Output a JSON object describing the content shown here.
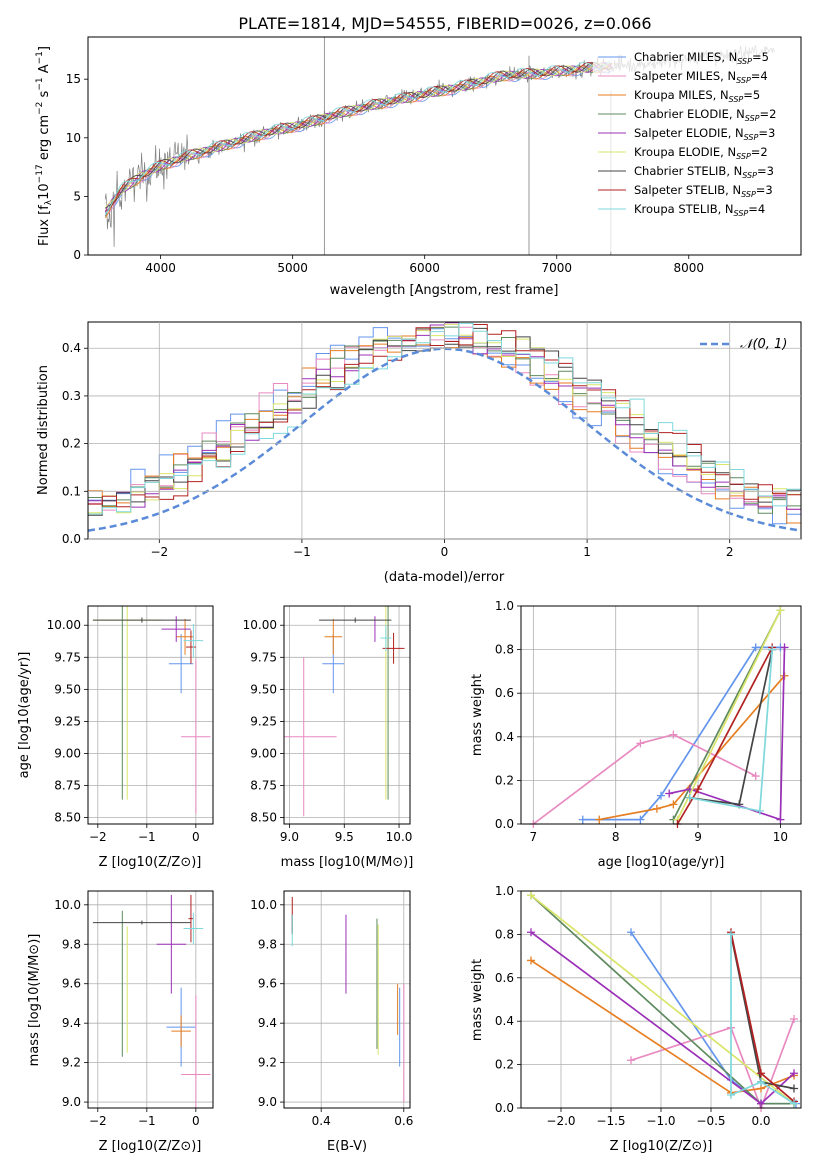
{
  "figure_title": "PLATE=1814, MJD=54555, FIBERID=0026, z=0.066",
  "model_colors": [
    "#6495ed",
    "#e889c0",
    "#e67e22",
    "#5f8a5f",
    "#9b30b8",
    "#d9e56a",
    "#444444",
    "#b22222",
    "#7fd8dc"
  ],
  "chart_data": [
    {
      "id": "spectrum",
      "type": "line",
      "title": "PLATE=1814, MJD=54555, FIBERID=0026, z=0.066",
      "xlabel": "wavelength [Angstrom, rest frame]",
      "ylabel": "Flux [fλ10⁻¹⁷ erg cm⁻² s⁻¹ A⁻¹]",
      "xlim": [
        3450,
        8850
      ],
      "ylim": [
        0,
        18.6
      ],
      "xticks": [
        4000,
        5000,
        6000,
        7000,
        8000
      ],
      "yticks": [
        0,
        5,
        10,
        15
      ],
      "grid": false,
      "legend_position": "top-right",
      "data_color": "#808080",
      "data_profile": {
        "x": [
          3580,
          3700,
          3850,
          4000,
          4200,
          4500,
          4800,
          5100,
          5400,
          5700,
          6000,
          6300,
          6600,
          6900,
          7200,
          7500,
          7800,
          8100,
          8400,
          8650
        ],
        "y": [
          3.6,
          5.5,
          6.7,
          7.6,
          8.4,
          9.4,
          10.4,
          11.2,
          12.2,
          13.0,
          13.7,
          14.4,
          15.3,
          15.5,
          15.9,
          16.2,
          16.4,
          16.8,
          17.2,
          17.5
        ]
      },
      "series": [
        {
          "name": "Chabrier MILES, N_SSP=5"
        },
        {
          "name": "Salpeter MILES, N_SSP=4"
        },
        {
          "name": "Kroupa MILES, N_SSP=5"
        },
        {
          "name": "Chabrier ELODIE, N_SSP=2"
        },
        {
          "name": "Salpeter ELODIE, N_SSP=3"
        },
        {
          "name": "Kroupa ELODIE, N_SSP=2"
        },
        {
          "name": "Chabrier STELIB, N_SSP=3"
        },
        {
          "name": "Salpeter STELIB, N_SSP=3"
        },
        {
          "name": "Kroupa STELIB, N_SSP=4"
        }
      ]
    },
    {
      "id": "residuals",
      "type": "line",
      "xlabel": "(data-model)/error",
      "ylabel": "Normed distribution",
      "xlim": [
        -2.5,
        2.5
      ],
      "ylim": [
        0,
        0.455
      ],
      "xticks": [
        -2,
        -1,
        0,
        1,
        2
      ],
      "yticks": [
        0.0,
        0.1,
        0.2,
        0.3,
        0.4
      ],
      "grid": true,
      "legend": "N(0, 1)",
      "legend_position": "top-right",
      "bin_width": 0.1
    },
    {
      "id": "age_vs_Z",
      "type": "scatter",
      "xlabel": "Z [log10(Z/Z⊙)]",
      "ylabel": "age  [log10(age/yr)]",
      "xlim": [
        -2.2,
        0.35
      ],
      "ylim": [
        8.45,
        10.15
      ],
      "xticks": [
        -2,
        -1,
        0
      ],
      "yticks": [
        8.5,
        8.75,
        9.0,
        9.25,
        9.5,
        9.75,
        10.0
      ],
      "grid": true,
      "points": [
        {
          "x": -0.3,
          "y": 9.7,
          "xerr": 0.25,
          "yerr": 0.23,
          "c": 0
        },
        {
          "x": 0.0,
          "y": 9.13,
          "xerr": 0.3,
          "yerr": 0.6,
          "c": 1
        },
        {
          "x": -0.22,
          "y": 9.91,
          "xerr": 0.18,
          "yerr": 0.14,
          "c": 2
        },
        {
          "x": -1.5,
          "y": 10.04,
          "xerr": 0.0,
          "yerr": 1.4,
          "c": 3
        },
        {
          "x": -0.4,
          "y": 9.97,
          "xerr": 0.3,
          "yerr": 0.1,
          "c": 4
        },
        {
          "x": -1.4,
          "y": 10.04,
          "xerr": 0.7,
          "yerr": 1.4,
          "c": 5
        },
        {
          "x": -1.1,
          "y": 10.04,
          "xerr": 1.0,
          "yerr": 0.02,
          "c": 6
        },
        {
          "x": -0.1,
          "y": 9.83,
          "xerr": 0.1,
          "yerr": 0.13,
          "c": 7
        },
        {
          "x": -0.05,
          "y": 9.88,
          "xerr": 0.2,
          "yerr": 0.13,
          "c": 8
        }
      ]
    },
    {
      "id": "age_vs_mass",
      "type": "scatter",
      "xlabel": "mass [log10(M/M⊙)]",
      "ylim": [
        8.45,
        10.15
      ],
      "xlim": [
        8.95,
        10.1
      ],
      "xticks": [
        9.0,
        9.5,
        10.0
      ],
      "yticks": [
        8.5,
        8.75,
        9.0,
        9.25,
        9.5,
        9.75,
        10.0
      ],
      "grid": true,
      "points": [
        {
          "x": 9.4,
          "y": 9.7,
          "xerr": 0.1,
          "yerr": 0.23,
          "c": 0
        },
        {
          "x": 9.13,
          "y": 9.13,
          "xerr": 0.3,
          "yerr": 0.62,
          "c": 1
        },
        {
          "x": 9.4,
          "y": 9.91,
          "xerr": 0.08,
          "yerr": 0.14,
          "c": 2
        },
        {
          "x": 9.9,
          "y": 10.04,
          "xerr": 0.0,
          "yerr": 1.4,
          "c": 3
        },
        {
          "x": 9.78,
          "y": 9.97,
          "xerr": 0.0,
          "yerr": 0.1,
          "c": 4
        },
        {
          "x": 9.88,
          "y": 10.04,
          "xerr": 0.0,
          "yerr": 1.4,
          "c": 5
        },
        {
          "x": 9.6,
          "y": 10.04,
          "xerr": 0.33,
          "yerr": 0.02,
          "c": 6
        },
        {
          "x": 9.95,
          "y": 9.82,
          "xerr": 0.1,
          "yerr": 0.12,
          "c": 7
        },
        {
          "x": 9.88,
          "y": 9.9,
          "xerr": 0.05,
          "yerr": 0.1,
          "c": 8
        }
      ]
    },
    {
      "id": "weight_vs_age",
      "type": "line",
      "xlabel": "age  [log10(age/yr)]",
      "ylabel": "mass weight",
      "xlim": [
        6.85,
        10.25
      ],
      "ylim": [
        0,
        1.0
      ],
      "xticks": [
        7,
        8,
        9,
        10
      ],
      "yticks": [
        0.0,
        0.2,
        0.4,
        0.6,
        0.8,
        1.0
      ],
      "grid": true,
      "series": [
        {
          "c": 0,
          "x": [
            7.6,
            8.3,
            8.55,
            9.7,
            10.0
          ],
          "y": [
            0.02,
            0.02,
            0.13,
            0.81,
            0.81
          ]
        },
        {
          "c": 1,
          "x": [
            7.0,
            8.3,
            8.7,
            9.7
          ],
          "y": [
            0.0,
            0.37,
            0.41,
            0.22
          ]
        },
        {
          "c": 2,
          "x": [
            7.8,
            8.5,
            8.7,
            10.05
          ],
          "y": [
            0.02,
            0.07,
            0.09,
            0.68
          ]
        },
        {
          "c": 3,
          "x": [
            8.7,
            10.0
          ],
          "y": [
            0.02,
            0.98
          ]
        },
        {
          "c": 4,
          "x": [
            8.65,
            8.9,
            10.0,
            10.05
          ],
          "y": [
            0.14,
            0.16,
            0.02,
            0.81
          ]
        },
        {
          "c": 5,
          "x": [
            8.75,
            10.0
          ],
          "y": [
            0.02,
            0.98
          ]
        },
        {
          "c": 6,
          "x": [
            8.9,
            9.5,
            9.9
          ],
          "y": [
            0.12,
            0.09,
            0.8
          ]
        },
        {
          "c": 7,
          "x": [
            8.75,
            9.0,
            9.9
          ],
          "y": [
            0.0,
            0.16,
            0.81
          ]
        },
        {
          "c": 8,
          "x": [
            8.9,
            9.75,
            9.9
          ],
          "y": [
            0.12,
            0.06,
            0.8
          ]
        }
      ]
    },
    {
      "id": "mass_vs_Z",
      "type": "scatter",
      "xlabel": "Z [log10(Z/Z⊙)]",
      "ylabel": "mass [log10(M/M⊙)]",
      "xlim": [
        -2.2,
        0.35
      ],
      "ylim": [
        8.97,
        10.07
      ],
      "xticks": [
        -2,
        -1,
        0
      ],
      "yticks": [
        9.0,
        9.2,
        9.4,
        9.6,
        9.8,
        10.0
      ],
      "grid": true,
      "points": [
        {
          "x": -0.3,
          "y": 9.38,
          "xerr": 0.3,
          "yerr": 0.2,
          "c": 0
        },
        {
          "x": 0.0,
          "y": 9.14,
          "xerr": 0.3,
          "yerr": 0.4,
          "c": 1
        },
        {
          "x": -0.3,
          "y": 9.36,
          "xerr": 0.2,
          "yerr": 0.08,
          "c": 2
        },
        {
          "x": -1.5,
          "y": 9.6,
          "xerr": 0.0,
          "yerr": 0.37,
          "c": 3
        },
        {
          "x": -0.5,
          "y": 9.8,
          "xerr": 0.3,
          "yerr": 0.25,
          "c": 4
        },
        {
          "x": -1.4,
          "y": 9.57,
          "xerr": 0.0,
          "yerr": 0.32,
          "c": 5
        },
        {
          "x": -1.1,
          "y": 9.91,
          "xerr": 1.0,
          "yerr": 0.01,
          "c": 6
        },
        {
          "x": -0.1,
          "y": 9.93,
          "xerr": 0.05,
          "yerr": 0.12,
          "c": 7
        },
        {
          "x": -0.05,
          "y": 9.88,
          "xerr": 0.2,
          "yerr": 0.08,
          "c": 8
        }
      ]
    },
    {
      "id": "mass_vs_ebv",
      "type": "scatter",
      "xlabel": "E(B-V)",
      "xlim": [
        0.31,
        0.615
      ],
      "ylim": [
        8.97,
        10.07
      ],
      "xticks": [
        0.4,
        0.6
      ],
      "yticks": [
        9.0,
        9.2,
        9.4,
        9.6,
        9.8,
        10.0
      ],
      "grid": true,
      "points": [
        {
          "x": 0.59,
          "y": 9.38,
          "xerr": 0.0,
          "yerr": 0.2,
          "c": 0
        },
        {
          "x": 0.6,
          "y": 9.3,
          "xerr": 0.0,
          "yerr": 0.3,
          "c": 1
        },
        {
          "x": 0.585,
          "y": 9.47,
          "xerr": 0.0,
          "yerr": 0.13,
          "c": 2
        },
        {
          "x": 0.535,
          "y": 9.6,
          "xerr": 0.0,
          "yerr": 0.33,
          "c": 3
        },
        {
          "x": 0.46,
          "y": 9.75,
          "xerr": 0.0,
          "yerr": 0.2,
          "c": 4
        },
        {
          "x": 0.538,
          "y": 9.57,
          "xerr": 0.0,
          "yerr": 0.33,
          "c": 5
        },
        {
          "x": 0.33,
          "y": 9.9,
          "xerr": 0.0,
          "yerr": 0.05,
          "c": 6
        },
        {
          "x": 0.33,
          "y": 9.95,
          "xerr": 0.0,
          "yerr": 0.09,
          "c": 7
        },
        {
          "x": 0.33,
          "y": 9.87,
          "xerr": 0.0,
          "yerr": 0.08,
          "c": 8
        }
      ]
    },
    {
      "id": "weight_vs_Z",
      "type": "line",
      "xlabel": "Z [log10(Z/Z⊙)]",
      "ylabel": "mass weight",
      "xlim": [
        -2.4,
        0.4
      ],
      "ylim": [
        0,
        1.0
      ],
      "xticks": [
        -2.0,
        -1.5,
        -1.0,
        -0.5,
        0.0
      ],
      "yticks": [
        0.0,
        0.2,
        0.4,
        0.6,
        0.8,
        1.0
      ],
      "grid": true,
      "series": [
        {
          "c": 0,
          "x": [
            -1.3,
            -0.3,
            0.0,
            0.35
          ],
          "y": [
            0.81,
            0.13,
            0.02,
            0.02
          ]
        },
        {
          "c": 1,
          "x": [
            -1.3,
            -0.3,
            0.0,
            0.33
          ],
          "y": [
            0.22,
            0.37,
            0.0,
            0.41
          ]
        },
        {
          "c": 2,
          "x": [
            -2.3,
            -0.3,
            0.0,
            0.33
          ],
          "y": [
            0.68,
            0.07,
            0.09,
            0.15
          ]
        },
        {
          "c": 3,
          "x": [
            -2.3,
            0.0,
            0.33
          ],
          "y": [
            0.98,
            0.02,
            0.02
          ]
        },
        {
          "c": 4,
          "x": [
            -2.3,
            0.0,
            0.33
          ],
          "y": [
            0.81,
            0.02,
            0.16
          ]
        },
        {
          "c": 5,
          "x": [
            -2.3,
            0.33,
            0.33
          ],
          "y": [
            0.98,
            0.02,
            0.02
          ]
        },
        {
          "c": 6,
          "x": [
            -0.3,
            0.0,
            0.33
          ],
          "y": [
            0.8,
            0.12,
            0.09
          ]
        },
        {
          "c": 7,
          "x": [
            -0.3,
            0.0,
            0.33
          ],
          "y": [
            0.81,
            0.16,
            0.03
          ]
        },
        {
          "c": 8,
          "x": [
            -0.3,
            -0.3,
            0.0,
            0.33
          ],
          "y": [
            0.8,
            0.06,
            0.12,
            0.02
          ]
        }
      ]
    }
  ]
}
